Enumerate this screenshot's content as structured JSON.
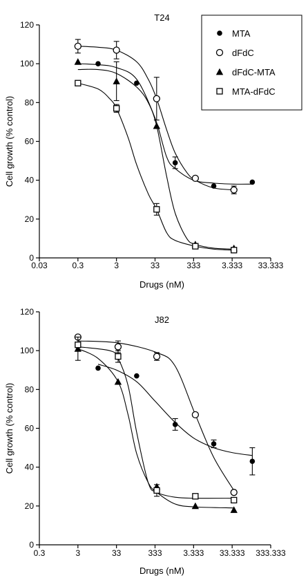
{
  "chart_data": [
    {
      "type": "scatter",
      "title": "T24",
      "xlabel": "Drugs (nM)",
      "ylabel": "Cell growth (% control)",
      "x_scale": "log",
      "x_tick_labels": [
        "0.03",
        "0.3",
        "3",
        "33",
        "333",
        "3.333",
        "33.333"
      ],
      "y_ticks": [
        0,
        20,
        40,
        60,
        80,
        100,
        120
      ],
      "ylim": [
        0,
        120
      ],
      "legend": {
        "placement": "top-right",
        "entries": [
          "MTA",
          "dFdC",
          "dFdC-MTA",
          "MTA-dFdC"
        ]
      },
      "series": [
        {
          "name": "MTA",
          "marker": "filled-circle",
          "points": [
            [
              1,
              100
            ],
            [
              10,
              90
            ],
            [
              100,
              49
            ],
            [
              1000,
              37
            ],
            [
              10000,
              39
            ]
          ],
          "errors": [
            0,
            0,
            3,
            0,
            0
          ],
          "fit": [
            [
              0.3,
              100
            ],
            [
              1,
              99.5
            ],
            [
              3,
              98
            ],
            [
              10,
              92
            ],
            [
              30,
              72
            ],
            [
              60,
              52
            ],
            [
              100,
              46
            ],
            [
              300,
              40
            ],
            [
              1000,
              38.5
            ],
            [
              3333,
              38
            ],
            [
              10000,
              38
            ]
          ]
        },
        {
          "name": "dFdC",
          "marker": "open-circle",
          "points": [
            [
              0.3,
              109
            ],
            [
              3,
              107
            ],
            [
              33,
              82
            ],
            [
              333,
              41
            ],
            [
              3333,
              35
            ]
          ],
          "errors": [
            3.5,
            4.5,
            11,
            0,
            2
          ],
          "fit": [
            [
              0.3,
              109
            ],
            [
              1,
              108.5
            ],
            [
              3,
              107
            ],
            [
              10,
              101
            ],
            [
              20,
              92
            ],
            [
              33,
              82
            ],
            [
              60,
              66
            ],
            [
              100,
              54
            ],
            [
              200,
              44
            ],
            [
              333,
              40
            ],
            [
              1000,
              36
            ],
            [
              3333,
              35
            ]
          ]
        },
        {
          "name": "dFdC-MTA",
          "marker": "filled-triangle",
          "points": [
            [
              0.3,
              101
            ],
            [
              3,
              91
            ],
            [
              33,
              68
            ],
            [
              333,
              7
            ],
            [
              3333,
              5
            ]
          ],
          "errors": [
            0,
            10,
            0,
            0,
            0
          ],
          "fit": [
            [
              0.3,
              97
            ],
            [
              1,
              97
            ],
            [
              3,
              95
            ],
            [
              10,
              88
            ],
            [
              20,
              80
            ],
            [
              33,
              68
            ],
            [
              60,
              42
            ],
            [
              100,
              23
            ],
            [
              200,
              10
            ],
            [
              333,
              7
            ],
            [
              1000,
              5
            ],
            [
              3333,
              4.5
            ]
          ]
        },
        {
          "name": "MTA-dFdC",
          "marker": "open-square",
          "points": [
            [
              0.3,
              90
            ],
            [
              3,
              77
            ],
            [
              33,
              25
            ],
            [
              333,
              6
            ],
            [
              3333,
              4
            ]
          ],
          "errors": [
            0,
            2,
            3,
            0,
            0
          ],
          "fit": [
            [
              0.3,
              90
            ],
            [
              1,
              87
            ],
            [
              2,
              82
            ],
            [
              3,
              77
            ],
            [
              6,
              62
            ],
            [
              10,
              48
            ],
            [
              20,
              33
            ],
            [
              33,
              25
            ],
            [
              60,
              13
            ],
            [
              100,
              9
            ],
            [
              333,
              6
            ],
            [
              1000,
              4.5
            ],
            [
              3333,
              4
            ]
          ]
        }
      ]
    },
    {
      "type": "scatter",
      "title": "J82",
      "xlabel": "Drugs (nM)",
      "ylabel": "Cell growth (% control)",
      "x_scale": "log",
      "x_tick_labels": [
        "0.3",
        "3",
        "33",
        "333",
        "3.333",
        "33.333",
        "333.333"
      ],
      "y_ticks": [
        0,
        20,
        40,
        60,
        80,
        100,
        120
      ],
      "ylim": [
        0,
        120
      ],
      "series": [
        {
          "name": "MTA",
          "marker": "filled-circle",
          "points": [
            [
              10,
              91
            ],
            [
              100,
              87
            ],
            [
              1000,
              62
            ],
            [
              10000,
              52
            ],
            [
              100000,
              43
            ]
          ],
          "errors": [
            0,
            0,
            3,
            2,
            7
          ],
          "fit": [
            [
              10,
              93
            ],
            [
              30,
              90
            ],
            [
              100,
              84
            ],
            [
              300,
              74
            ],
            [
              1000,
              63
            ],
            [
              3000,
              55
            ],
            [
              10000,
              50
            ],
            [
              30000,
              47.5
            ],
            [
              100000,
              46
            ]
          ]
        },
        {
          "name": "dFdC",
          "marker": "open-circle",
          "points": [
            [
              3,
              107
            ],
            [
              33,
              102
            ],
            [
              333,
              97
            ],
            [
              3333,
              67
            ],
            [
              33333,
              27
            ]
          ],
          "errors": [
            0,
            3,
            2,
            0,
            0
          ],
          "fit": [
            [
              3,
              105
            ],
            [
              33,
              104
            ],
            [
              333,
              99
            ],
            [
              1000,
              92
            ],
            [
              3333,
              67
            ],
            [
              10000,
              45
            ],
            [
              33333,
              28
            ]
          ]
        },
        {
          "name": "dFdC-MTA",
          "marker": "filled-triangle",
          "points": [
            [
              3,
              101
            ],
            [
              33,
              84
            ],
            [
              333,
              30
            ],
            [
              3333,
              20
            ],
            [
              33333,
              18
            ]
          ],
          "errors": [
            6,
            0,
            0,
            0,
            0
          ],
          "fit": [
            [
              3,
              101
            ],
            [
              10,
              96
            ],
            [
              33,
              84
            ],
            [
              60,
              67
            ],
            [
              100,
              47
            ],
            [
              200,
              32
            ],
            [
              333,
              27
            ],
            [
              1000,
              21
            ],
            [
              3333,
              19.5
            ],
            [
              33333,
              19
            ]
          ]
        },
        {
          "name": "MTA-dFdC",
          "marker": "open-square",
          "points": [
            [
              3,
              103
            ],
            [
              33,
              97
            ],
            [
              333,
              28
            ],
            [
              3333,
              25
            ],
            [
              33333,
              23
            ]
          ],
          "errors": [
            0,
            3,
            3,
            0,
            0
          ],
          "fit": [
            [
              3,
              102
            ],
            [
              20,
              100
            ],
            [
              33,
              96
            ],
            [
              60,
              82
            ],
            [
              100,
              58
            ],
            [
              200,
              32
            ],
            [
              333,
              27
            ],
            [
              1000,
              24.5
            ],
            [
              3333,
              24
            ],
            [
              33333,
              24
            ]
          ]
        }
      ]
    }
  ]
}
